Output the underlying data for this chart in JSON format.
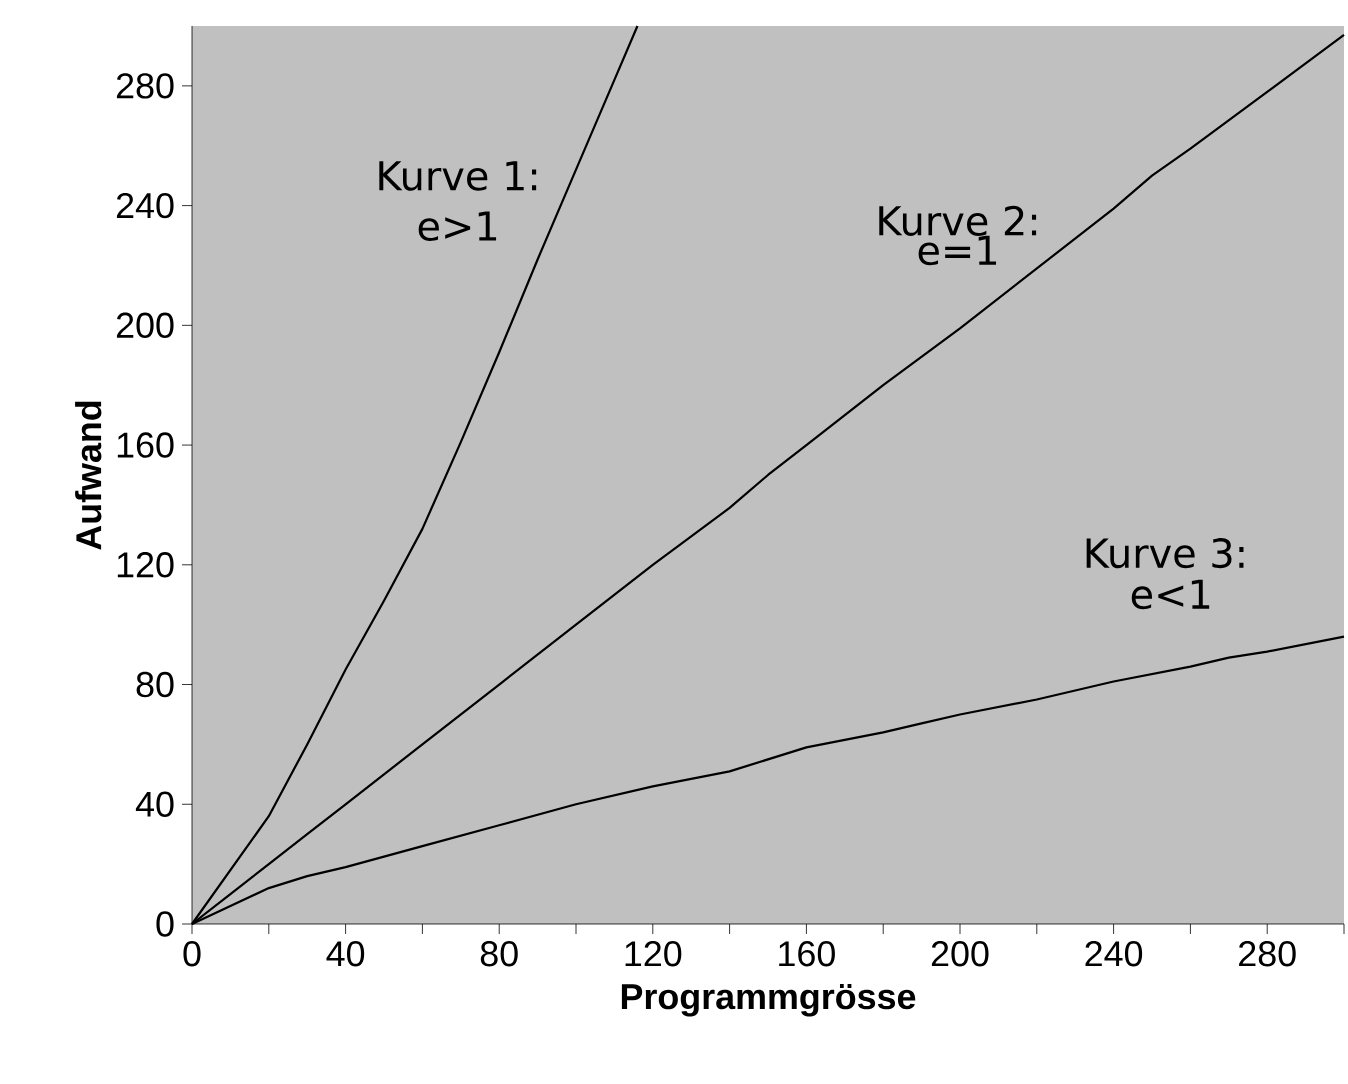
{
  "chart_data": {
    "type": "line",
    "xlabel": "Programmgrösse",
    "ylabel": "Aufwand",
    "xlim": [
      0,
      300
    ],
    "ylim": [
      0,
      300
    ],
    "xticks": [
      0,
      {
        "value": 20,
        "label": null
      },
      40,
      {
        "value": 60,
        "label": null
      },
      80,
      {
        "value": 100,
        "label": null
      },
      120,
      {
        "value": 140,
        "label": null
      },
      160,
      {
        "value": 180,
        "label": null
      },
      200,
      {
        "value": 220,
        "label": null
      },
      240,
      {
        "value": 260,
        "label": null
      },
      280,
      {
        "value": 300,
        "label": null
      }
    ],
    "yticks": [
      0,
      40,
      80,
      120,
      160,
      200,
      240,
      280
    ],
    "marker": "none",
    "line_style": "solid",
    "series": [
      {
        "color": "#000000",
        "x": [
          0,
          10,
          20,
          30,
          40,
          50,
          60,
          70,
          80,
          90,
          100,
          110,
          116
        ],
        "values": [
          0,
          18,
          36,
          60,
          85,
          108,
          132,
          161,
          191,
          222,
          252,
          282,
          300
        ]
      },
      {
        "color": "#000000",
        "x": [
          0,
          10,
          20,
          30,
          40,
          50,
          60,
          80,
          100,
          120,
          140,
          150,
          160,
          180,
          200,
          220,
          240,
          250,
          260,
          280,
          300
        ],
        "values": [
          0,
          10,
          20,
          30,
          40,
          50,
          60,
          80,
          100,
          120,
          139,
          150,
          160,
          180,
          199,
          219,
          239,
          250,
          259,
          278,
          297
        ]
      },
      {
        "color": "#000000",
        "x": [
          0,
          10,
          20,
          30,
          40,
          60,
          80,
          100,
          120,
          140,
          160,
          180,
          190,
          200,
          220,
          240,
          260,
          270,
          280,
          300
        ],
        "values": [
          0,
          6,
          12,
          16,
          19,
          26,
          33,
          40,
          46,
          51,
          59,
          64,
          67,
          70,
          75,
          81,
          86,
          89,
          91,
          96
        ]
      }
    ],
    "annotations": [
      "Kurve 1:",
      "e>1",
      "Kurve 2:",
      "e=1",
      "Kurve 3:",
      "e<1"
    ]
  }
}
